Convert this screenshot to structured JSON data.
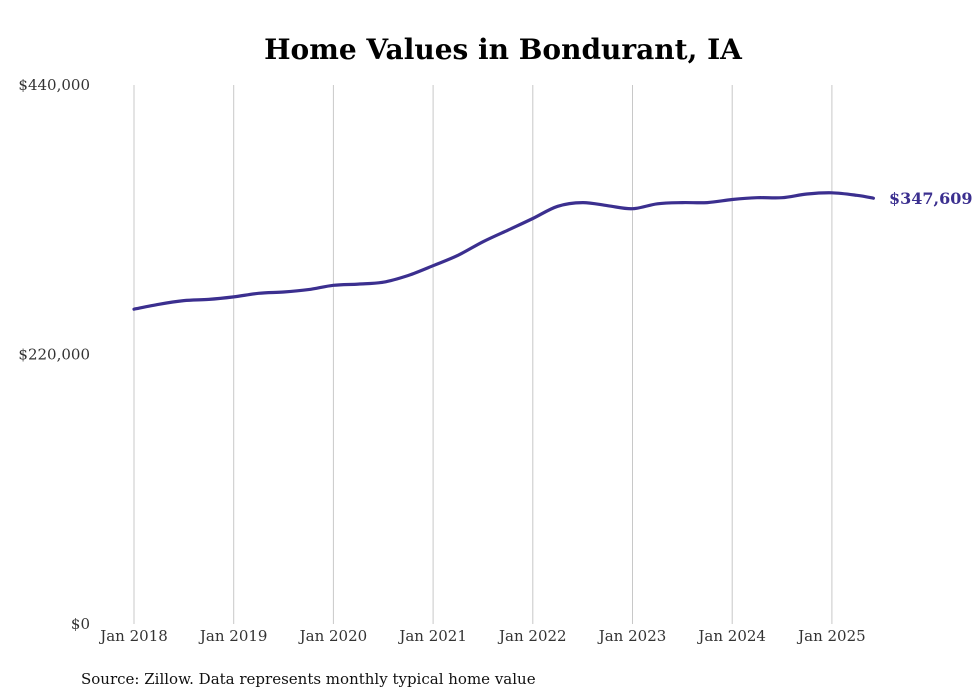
{
  "chart_data": {
    "type": "line",
    "title": "Home Values in Bondurant, IA",
    "source": "Source: Zillow. Data represents monthly typical home value",
    "ylim": [
      0,
      440000
    ],
    "y_ticks": [
      "$0",
      "$220,000",
      "$440,000"
    ],
    "y_tick_values": [
      0,
      220000,
      440000
    ],
    "x_ticks": [
      "Jan 2018",
      "Jan 2019",
      "Jan 2020",
      "Jan 2021",
      "Jan 2022",
      "Jan 2023",
      "Jan 2024",
      "Jan 2025"
    ],
    "grid": "vertical",
    "end_label": "$347,609",
    "line_color": "#3b2f8f",
    "series": [
      {
        "x": [
          "2018-01",
          "2018-04",
          "2018-07",
          "2018-10",
          "2019-01",
          "2019-04",
          "2019-07",
          "2019-10",
          "2020-01",
          "2020-04",
          "2020-07",
          "2020-10",
          "2021-01",
          "2021-04",
          "2021-07",
          "2021-10",
          "2022-01",
          "2022-04",
          "2022-07",
          "2022-10",
          "2023-01",
          "2023-04",
          "2023-07",
          "2023-10",
          "2024-01",
          "2024-04",
          "2024-07",
          "2024-10",
          "2025-01",
          "2025-04",
          "2025-06"
        ],
        "values": [
          257000,
          261000,
          264000,
          265000,
          267000,
          270000,
          271000,
          273000,
          276500,
          277500,
          279000,
          284500,
          292500,
          301000,
          312000,
          321500,
          331000,
          341000,
          344000,
          341500,
          339000,
          343000,
          344000,
          344000,
          346500,
          348000,
          348000,
          351000,
          352000,
          350000,
          347609
        ]
      }
    ]
  }
}
